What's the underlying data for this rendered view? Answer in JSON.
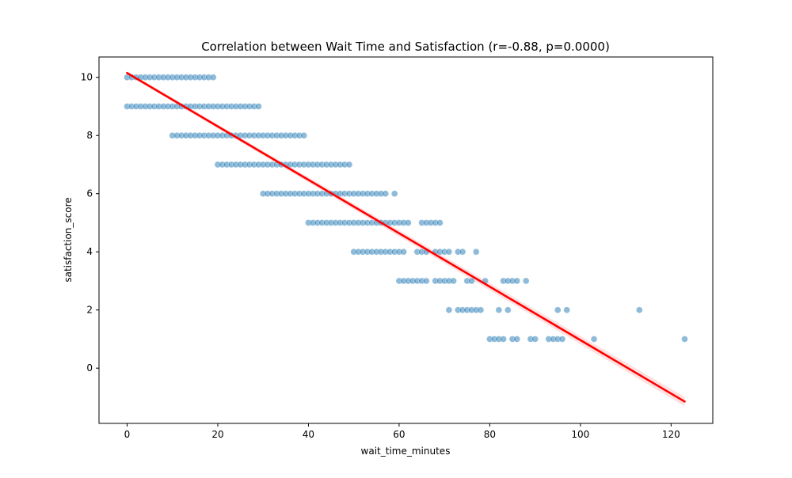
{
  "chart_data": {
    "type": "scatter",
    "title": "Correlation between Wait Time and Satisfaction (r=-0.88, p=0.0000)",
    "xlabel": "wait_time_minutes",
    "ylabel": "satisfaction_score",
    "xlim": [
      -6.2,
      129.2
    ],
    "ylim": [
      -1.9,
      10.7
    ],
    "xticks": [
      0,
      20,
      40,
      60,
      80,
      100,
      120
    ],
    "yticks": [
      0,
      2,
      4,
      6,
      8,
      10
    ],
    "grid": false,
    "legend": "none",
    "point_color": "#1f77b4",
    "point_opacity": 0.5,
    "line_color": "#ff0000",
    "series": [
      {
        "type": "scatter",
        "points": [
          [
            0,
            10
          ],
          [
            1,
            10
          ],
          [
            2,
            10
          ],
          [
            3,
            10
          ],
          [
            4,
            10
          ],
          [
            5,
            10
          ],
          [
            6,
            10
          ],
          [
            7,
            10
          ],
          [
            8,
            10
          ],
          [
            9,
            10
          ],
          [
            10,
            10
          ],
          [
            11,
            10
          ],
          [
            12,
            10
          ],
          [
            13,
            10
          ],
          [
            14,
            10
          ],
          [
            15,
            10
          ],
          [
            16,
            10
          ],
          [
            17,
            10
          ],
          [
            18,
            10
          ],
          [
            19,
            10
          ],
          [
            0,
            9
          ],
          [
            1,
            9
          ],
          [
            2,
            9
          ],
          [
            3,
            9
          ],
          [
            4,
            9
          ],
          [
            5,
            9
          ],
          [
            6,
            9
          ],
          [
            7,
            9
          ],
          [
            8,
            9
          ],
          [
            9,
            9
          ],
          [
            10,
            9
          ],
          [
            11,
            9
          ],
          [
            12,
            9
          ],
          [
            13,
            9
          ],
          [
            14,
            9
          ],
          [
            15,
            9
          ],
          [
            16,
            9
          ],
          [
            17,
            9
          ],
          [
            18,
            9
          ],
          [
            19,
            9
          ],
          [
            20,
            9
          ],
          [
            21,
            9
          ],
          [
            22,
            9
          ],
          [
            23,
            9
          ],
          [
            24,
            9
          ],
          [
            25,
            9
          ],
          [
            26,
            9
          ],
          [
            27,
            9
          ],
          [
            28,
            9
          ],
          [
            29,
            9
          ],
          [
            10,
            8
          ],
          [
            11,
            8
          ],
          [
            12,
            8
          ],
          [
            13,
            8
          ],
          [
            14,
            8
          ],
          [
            15,
            8
          ],
          [
            16,
            8
          ],
          [
            17,
            8
          ],
          [
            18,
            8
          ],
          [
            19,
            8
          ],
          [
            20,
            8
          ],
          [
            21,
            8
          ],
          [
            22,
            8
          ],
          [
            23,
            8
          ],
          [
            24,
            8
          ],
          [
            25,
            8
          ],
          [
            26,
            8
          ],
          [
            27,
            8
          ],
          [
            28,
            8
          ],
          [
            29,
            8
          ],
          [
            30,
            8
          ],
          [
            31,
            8
          ],
          [
            32,
            8
          ],
          [
            33,
            8
          ],
          [
            34,
            8
          ],
          [
            35,
            8
          ],
          [
            36,
            8
          ],
          [
            37,
            8
          ],
          [
            38,
            8
          ],
          [
            39,
            8
          ],
          [
            20,
            7
          ],
          [
            21,
            7
          ],
          [
            22,
            7
          ],
          [
            23,
            7
          ],
          [
            24,
            7
          ],
          [
            25,
            7
          ],
          [
            26,
            7
          ],
          [
            27,
            7
          ],
          [
            28,
            7
          ],
          [
            29,
            7
          ],
          [
            30,
            7
          ],
          [
            31,
            7
          ],
          [
            32,
            7
          ],
          [
            33,
            7
          ],
          [
            34,
            7
          ],
          [
            35,
            7
          ],
          [
            36,
            7
          ],
          [
            37,
            7
          ],
          [
            38,
            7
          ],
          [
            39,
            7
          ],
          [
            40,
            7
          ],
          [
            41,
            7
          ],
          [
            42,
            7
          ],
          [
            43,
            7
          ],
          [
            44,
            7
          ],
          [
            45,
            7
          ],
          [
            46,
            7
          ],
          [
            47,
            7
          ],
          [
            48,
            7
          ],
          [
            49,
            7
          ],
          [
            30,
            6
          ],
          [
            31,
            6
          ],
          [
            32,
            6
          ],
          [
            33,
            6
          ],
          [
            34,
            6
          ],
          [
            35,
            6
          ],
          [
            36,
            6
          ],
          [
            37,
            6
          ],
          [
            38,
            6
          ],
          [
            39,
            6
          ],
          [
            40,
            6
          ],
          [
            41,
            6
          ],
          [
            42,
            6
          ],
          [
            43,
            6
          ],
          [
            44,
            6
          ],
          [
            45,
            6
          ],
          [
            46,
            6
          ],
          [
            47,
            6
          ],
          [
            48,
            6
          ],
          [
            49,
            6
          ],
          [
            50,
            6
          ],
          [
            51,
            6
          ],
          [
            52,
            6
          ],
          [
            53,
            6
          ],
          [
            54,
            6
          ],
          [
            55,
            6
          ],
          [
            56,
            6
          ],
          [
            57,
            6
          ],
          [
            59,
            6
          ],
          [
            40,
            5
          ],
          [
            41,
            5
          ],
          [
            42,
            5
          ],
          [
            43,
            5
          ],
          [
            44,
            5
          ],
          [
            45,
            5
          ],
          [
            46,
            5
          ],
          [
            47,
            5
          ],
          [
            48,
            5
          ],
          [
            49,
            5
          ],
          [
            50,
            5
          ],
          [
            51,
            5
          ],
          [
            52,
            5
          ],
          [
            53,
            5
          ],
          [
            54,
            5
          ],
          [
            55,
            5
          ],
          [
            56,
            5
          ],
          [
            57,
            5
          ],
          [
            58,
            5
          ],
          [
            59,
            5
          ],
          [
            60,
            5
          ],
          [
            61,
            5
          ],
          [
            62,
            5
          ],
          [
            65,
            5
          ],
          [
            66,
            5
          ],
          [
            67,
            5
          ],
          [
            68,
            5
          ],
          [
            69,
            5
          ],
          [
            50,
            4
          ],
          [
            51,
            4
          ],
          [
            52,
            4
          ],
          [
            53,
            4
          ],
          [
            54,
            4
          ],
          [
            55,
            4
          ],
          [
            56,
            4
          ],
          [
            57,
            4
          ],
          [
            58,
            4
          ],
          [
            59,
            4
          ],
          [
            60,
            4
          ],
          [
            61,
            4
          ],
          [
            64,
            4
          ],
          [
            65,
            4
          ],
          [
            66,
            4
          ],
          [
            68,
            4
          ],
          [
            69,
            4
          ],
          [
            70,
            4
          ],
          [
            71,
            4
          ],
          [
            73,
            4
          ],
          [
            74,
            4
          ],
          [
            77,
            4
          ],
          [
            60,
            3
          ],
          [
            61,
            3
          ],
          [
            62,
            3
          ],
          [
            63,
            3
          ],
          [
            64,
            3
          ],
          [
            65,
            3
          ],
          [
            66,
            3
          ],
          [
            68,
            3
          ],
          [
            69,
            3
          ],
          [
            70,
            3
          ],
          [
            71,
            3
          ],
          [
            72,
            3
          ],
          [
            75,
            3
          ],
          [
            76,
            3
          ],
          [
            79,
            3
          ],
          [
            83,
            3
          ],
          [
            84,
            3
          ],
          [
            85,
            3
          ],
          [
            86,
            3
          ],
          [
            88,
            3
          ],
          [
            71,
            2
          ],
          [
            73,
            2
          ],
          [
            74,
            2
          ],
          [
            75,
            2
          ],
          [
            76,
            2
          ],
          [
            77,
            2
          ],
          [
            78,
            2
          ],
          [
            82,
            2
          ],
          [
            84,
            2
          ],
          [
            95,
            2
          ],
          [
            97,
            2
          ],
          [
            113,
            2
          ],
          [
            80,
            1
          ],
          [
            81,
            1
          ],
          [
            82,
            1
          ],
          [
            83,
            1
          ],
          [
            85,
            1
          ],
          [
            86,
            1
          ],
          [
            89,
            1
          ],
          [
            90,
            1
          ],
          [
            93,
            1
          ],
          [
            94,
            1
          ],
          [
            95,
            1
          ],
          [
            96,
            1
          ],
          [
            103,
            1
          ],
          [
            123,
            1
          ]
        ]
      },
      {
        "type": "regression-line",
        "x": [
          0,
          123
        ],
        "y": [
          10.15,
          -1.15
        ]
      }
    ]
  }
}
